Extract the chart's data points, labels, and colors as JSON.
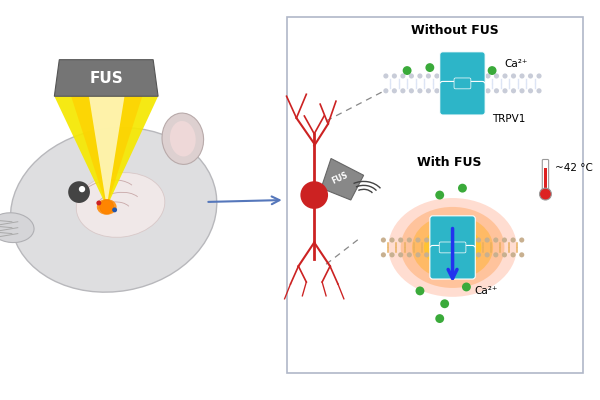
{
  "bg_color": "#ffffff",
  "teal_color": "#2db5c8",
  "green_ca": "#3aaa3a",
  "arrow_blue": "#2233ee",
  "title_without": "Without FUS",
  "title_with": "With FUS",
  "label_trpv1": "TRPV1",
  "label_ca": "Ca²⁺",
  "label_temp": "~42 °C",
  "label_fus_box": "FUS",
  "head_color": "#d8d8da",
  "head_outline": "#b8b8ba",
  "brain_color": "#f0e0e0",
  "neuron_color": "#cc2222",
  "fus_box_color": "#777777",
  "panel_border": "#b0b8c8",
  "dot_color_cold": "#c8ccd8",
  "dot_color_hot": "#c8b090",
  "tail_color_hot": "#e8b060",
  "tail_color_cold": "#dde5f5",
  "orange1": "#ff4400",
  "orange2": "#ff8800",
  "orange3": "#ffbb00",
  "orange4": "#ffee55"
}
